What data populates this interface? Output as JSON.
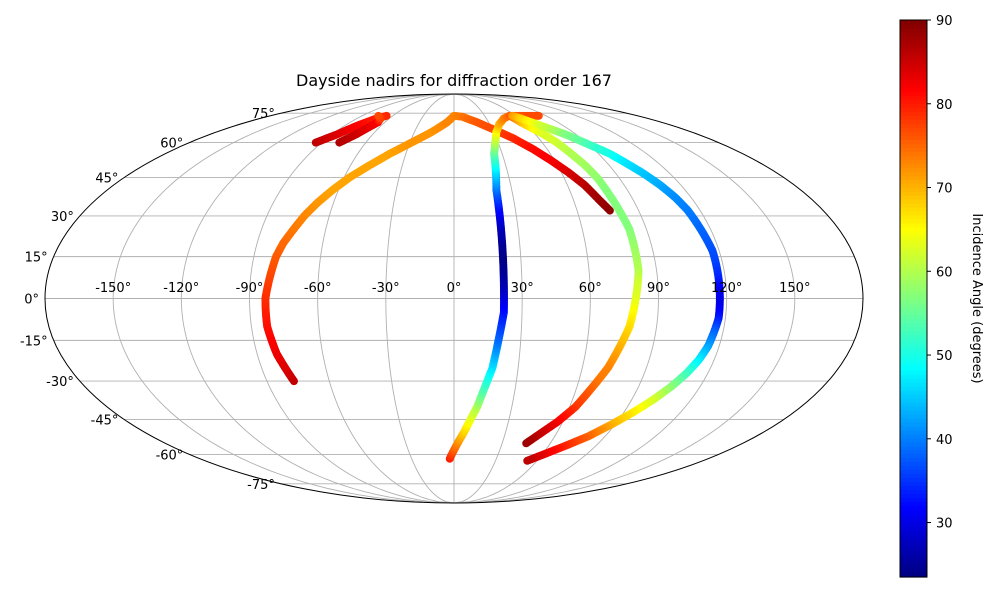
{
  "chart_data": {
    "type": "scatter",
    "projection": "mollweide",
    "title": "Dayside nadirs for diffraction order 167",
    "xtick_labels": [
      "-150°",
      "-120°",
      "-90°",
      "-60°",
      "-30°",
      "0°",
      "30°",
      "60°",
      "90°",
      "120°",
      "150°"
    ],
    "xtick_values": [
      -150,
      -120,
      -90,
      -60,
      -30,
      0,
      30,
      60,
      90,
      120,
      150
    ],
    "ytick_labels": [
      "-75°",
      "-60°",
      "-45°",
      "-30°",
      "-15°",
      "0°",
      "15°",
      "30°",
      "45°",
      "60°",
      "75°"
    ],
    "ytick_values": [
      -75,
      -60,
      -45,
      -30,
      -15,
      0,
      15,
      30,
      45,
      60,
      75
    ],
    "xlim": [
      -180,
      180
    ],
    "ylim": [
      -90,
      90
    ],
    "grid": true,
    "colormap": "jet",
    "colorbar": {
      "label": "Incidence Angle (degrees)",
      "range": [
        23.5,
        90
      ],
      "tick_labels": [
        "30",
        "40",
        "50",
        "60",
        "70",
        "80",
        "90"
      ],
      "tick_values": [
        30,
        40,
        50,
        60,
        70,
        80,
        90
      ],
      "placement": "right"
    },
    "tracks": [
      {
        "points": [
          [
            -94,
            60,
            86
          ],
          [
            -90,
            62,
            85
          ],
          [
            -86,
            64,
            84
          ],
          [
            -83,
            66,
            83
          ],
          [
            -80,
            68,
            82
          ],
          [
            -76,
            70,
            81
          ],
          [
            -72,
            72,
            80
          ],
          [
            -66,
            73.5,
            79
          ]
        ]
      },
      {
        "points": [
          [
            -78,
            60,
            87
          ],
          [
            -75,
            62,
            86
          ],
          [
            -72,
            64,
            85
          ],
          [
            -70,
            66,
            84
          ],
          [
            -68,
            68,
            83
          ],
          [
            -66,
            70,
            82
          ],
          [
            -68,
            72,
            78
          ],
          [
            -74,
            73.5,
            77
          ]
        ]
      },
      {
        "points": [
          [
            -77,
            -30,
            86
          ],
          [
            -79,
            -25,
            84
          ],
          [
            -81,
            -20,
            83
          ],
          [
            -82,
            -15,
            82
          ],
          [
            -83,
            -10,
            81
          ],
          [
            -83,
            -5,
            80
          ],
          [
            -83,
            0,
            79
          ],
          [
            -82,
            5,
            78
          ],
          [
            -81,
            10,
            77
          ],
          [
            -80,
            15,
            76
          ],
          [
            -78,
            20,
            75
          ],
          [
            -75,
            25,
            74
          ],
          [
            -72,
            30,
            73
          ],
          [
            -68,
            35,
            72
          ],
          [
            -63,
            40,
            71
          ],
          [
            -57,
            45,
            71
          ],
          [
            -49,
            50,
            71
          ],
          [
            -40,
            55,
            71
          ],
          [
            -29,
            60,
            72
          ],
          [
            -17,
            65,
            72
          ],
          [
            -6,
            70,
            73
          ],
          [
            0,
            73.5,
            73
          ],
          [
            8,
            73,
            74
          ],
          [
            20,
            70,
            76
          ],
          [
            32,
            66,
            77
          ],
          [
            42,
            62,
            79
          ],
          [
            51,
            57,
            81
          ],
          [
            58,
            52,
            82
          ],
          [
            64,
            47,
            84
          ],
          [
            69,
            42,
            86
          ],
          [
            73,
            36,
            88
          ],
          [
            76,
            32,
            89
          ]
        ]
      },
      {
        "points": [
          [
            -3,
            -62,
            80
          ],
          [
            0,
            -58,
            76
          ],
          [
            3,
            -54,
            72
          ],
          [
            6,
            -50,
            68
          ],
          [
            9,
            -45,
            64
          ],
          [
            12,
            -40,
            60
          ],
          [
            14,
            -35,
            55
          ],
          [
            16,
            -30,
            51
          ],
          [
            18,
            -25,
            47
          ],
          [
            19,
            -20,
            43
          ],
          [
            20,
            -15,
            39
          ],
          [
            21,
            -10,
            36
          ],
          [
            22,
            -5,
            33
          ],
          [
            22,
            0,
            30
          ],
          [
            22,
            5,
            27
          ],
          [
            22,
            10,
            25
          ],
          [
            22,
            15,
            24
          ],
          [
            22,
            20,
            25
          ],
          [
            22,
            25,
            27
          ],
          [
            22,
            30,
            30
          ],
          [
            22,
            35,
            34
          ],
          [
            22,
            40,
            39
          ],
          [
            23,
            45,
            44
          ],
          [
            24,
            50,
            49
          ],
          [
            25,
            55,
            54
          ],
          [
            28,
            60,
            60
          ],
          [
            32,
            65,
            65
          ],
          [
            38,
            69,
            70
          ],
          [
            46,
            72,
            73
          ],
          [
            54,
            73.5,
            75
          ],
          [
            64,
            73.5,
            76
          ],
          [
            74,
            73.5,
            77
          ],
          [
            83,
            73.5,
            77
          ]
        ]
      },
      {
        "points": [
          [
            55,
            73.5,
            76
          ],
          [
            58,
            70,
            70
          ],
          [
            62,
            67,
            66
          ],
          [
            66,
            64,
            63
          ],
          [
            70,
            60,
            62
          ],
          [
            73,
            55,
            60
          ],
          [
            76,
            50,
            59
          ],
          [
            78,
            45,
            58
          ],
          [
            79,
            40,
            57
          ],
          [
            80,
            35,
            57
          ],
          [
            81,
            30,
            57
          ],
          [
            82,
            25,
            57
          ],
          [
            82,
            20,
            58
          ],
          [
            82,
            15,
            59
          ],
          [
            82,
            10,
            60
          ],
          [
            81,
            5,
            62
          ],
          [
            80,
            0,
            63
          ],
          [
            79,
            -5,
            65
          ],
          [
            78,
            -10,
            67
          ],
          [
            76,
            -15,
            69
          ],
          [
            74,
            -20,
            71
          ],
          [
            72,
            -25,
            73
          ],
          [
            69,
            -30,
            74
          ],
          [
            66,
            -35,
            76
          ],
          [
            63,
            -40,
            78
          ],
          [
            60,
            -43,
            80
          ],
          [
            57,
            -46,
            82
          ],
          [
            53,
            -49,
            84
          ],
          [
            49,
            -52,
            86
          ],
          [
            45,
            -55,
            88
          ]
        ]
      },
      {
        "points": [
          [
            57,
            73.5,
            72
          ],
          [
            62,
            72,
            68
          ],
          [
            67,
            70,
            65
          ],
          [
            72,
            68,
            62
          ],
          [
            77,
            66,
            60
          ],
          [
            82,
            64,
            57
          ],
          [
            87,
            61,
            55
          ],
          [
            92,
            58,
            52
          ],
          [
            97,
            55,
            50
          ],
          [
            101,
            51,
            47
          ],
          [
            105,
            47,
            45
          ],
          [
            109,
            42,
            43
          ],
          [
            112,
            37,
            41
          ],
          [
            114,
            32,
            40
          ],
          [
            115,
            27,
            39
          ],
          [
            116,
            22,
            38
          ],
          [
            117,
            17,
            37
          ],
          [
            117,
            12,
            36
          ],
          [
            117,
            7,
            34
          ],
          [
            117,
            2,
            31
          ],
          [
            117,
            -2,
            30
          ],
          [
            117,
            -7,
            33
          ],
          [
            116,
            -12,
            38
          ],
          [
            115,
            -17,
            42
          ],
          [
            113,
            -22,
            47
          ],
          [
            110,
            -27,
            52
          ],
          [
            106,
            -32,
            57
          ],
          [
            101,
            -37,
            62
          ],
          [
            95,
            -42,
            66
          ],
          [
            88,
            -47,
            70
          ],
          [
            80,
            -52,
            75
          ],
          [
            71,
            -56,
            79
          ],
          [
            61,
            -60,
            83
          ],
          [
            53,
            -63,
            86
          ]
        ]
      }
    ]
  }
}
